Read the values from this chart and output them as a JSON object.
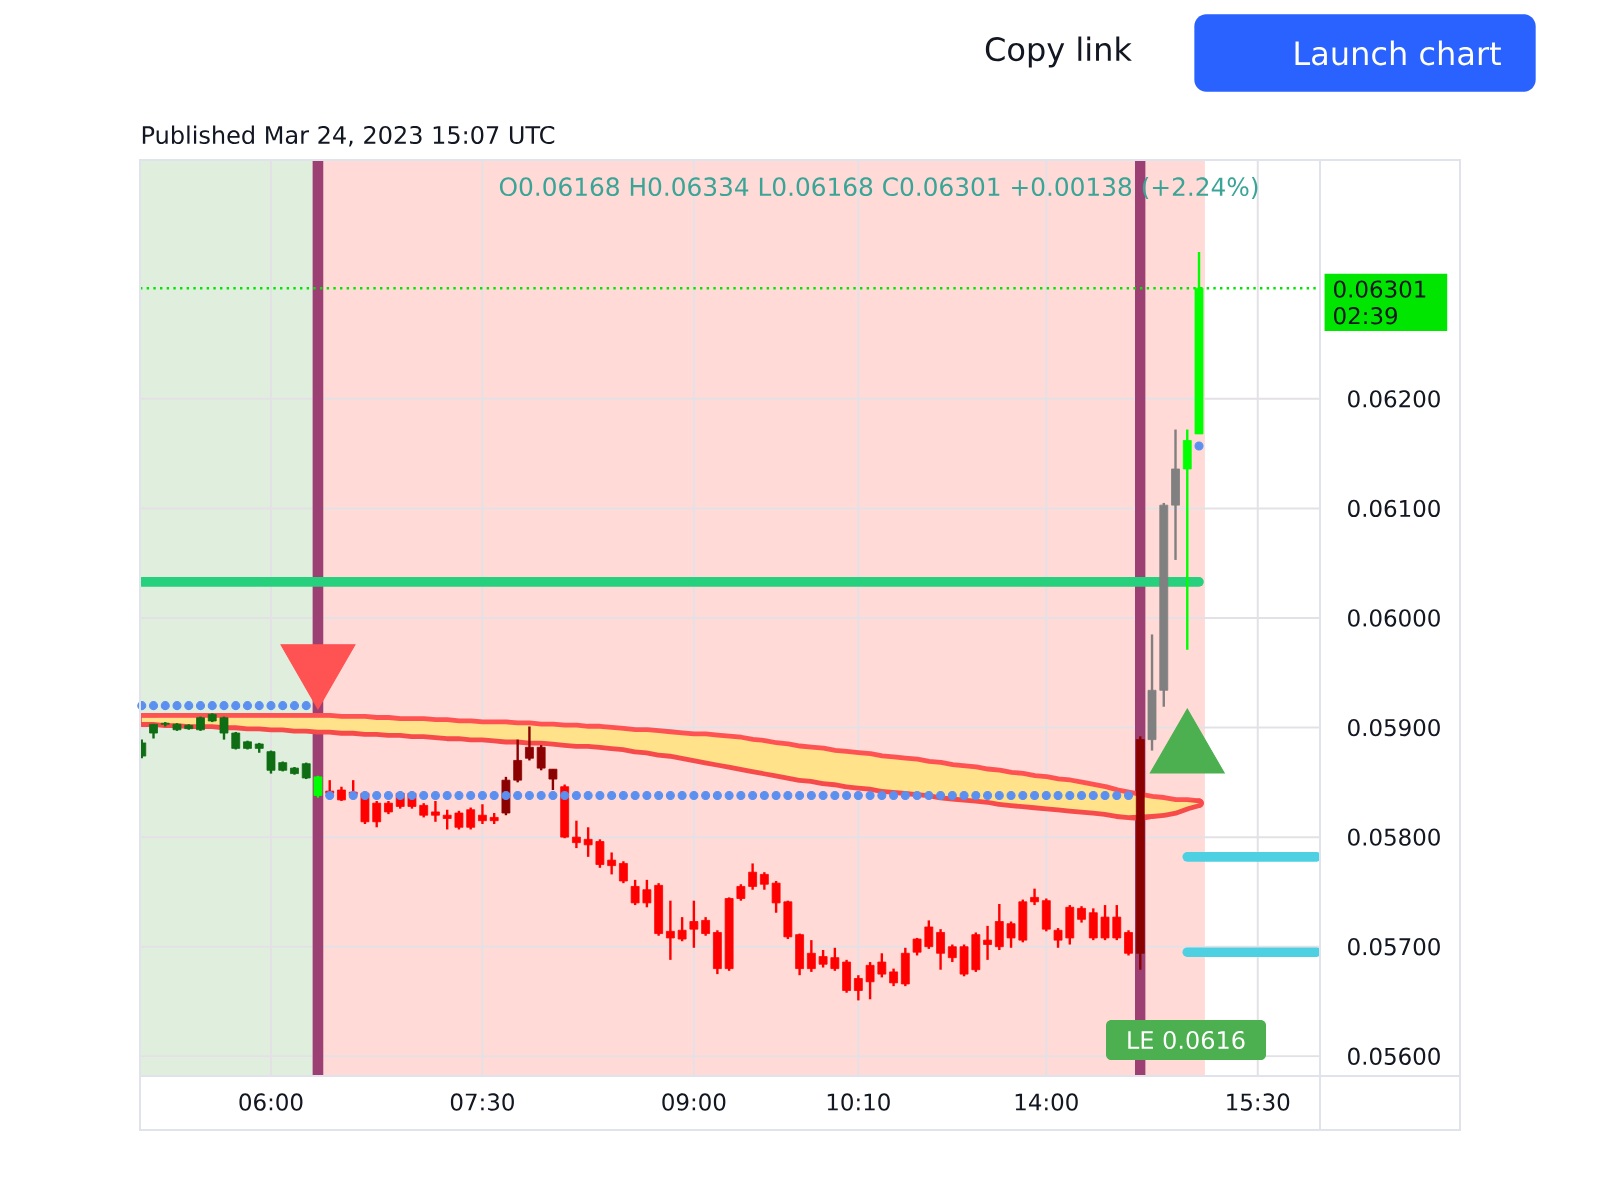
{
  "chart_data": {
    "type": "candlestick",
    "title": "O0.06168 H0.06334 L0.06168 C0.06301 +0.00138 (+2.24%)",
    "subtitle": "Published Mar 24, 2023 15:07 UTC",
    "categories": [
      null,
      null,
      null,
      null,
      null,
      null,
      null,
      null,
      null,
      null,
      null,
      "06:00",
      null,
      null,
      null,
      null,
      null,
      null,
      null,
      null,
      null,
      null,
      null,
      null,
      null,
      null,
      null,
      null,
      null,
      "07:30",
      null,
      null,
      null,
      null,
      null,
      null,
      null,
      null,
      null,
      null,
      null,
      null,
      null,
      null,
      null,
      null,
      null,
      "09:00",
      null,
      null,
      null,
      null,
      null,
      null,
      null,
      null,
      null,
      null,
      null,
      null,
      null,
      "10:10",
      null,
      null,
      null,
      null,
      null,
      null,
      null,
      null,
      null,
      null,
      null,
      null,
      null,
      null,
      null,
      "14:00",
      null,
      null,
      null,
      null,
      null,
      null,
      null,
      null,
      null,
      null,
      null,
      null,
      null,
      null,
      null,
      null,
      null,
      "15:30",
      null,
      null,
      null,
      null,
      null
    ],
    "ohlc": [
      [
        0.05874,
        0.05889,
        0.05872,
        0.05886
      ],
      [
        0.05895,
        0.05903,
        0.0589,
        0.05903
      ],
      [
        0.05903,
        0.05905,
        0.05901,
        0.05904
      ],
      [
        0.05898,
        0.05904,
        0.05897,
        0.05903
      ],
      [
        0.05899,
        0.05903,
        0.05898,
        0.05902
      ],
      [
        0.05898,
        0.0591,
        0.05897,
        0.05909
      ],
      [
        0.05906,
        0.05913,
        0.05905,
        0.05912
      ],
      [
        0.05895,
        0.0591,
        0.05889,
        0.05909
      ],
      [
        0.05881,
        0.05896,
        0.0588,
        0.05895
      ],
      [
        0.05881,
        0.05888,
        0.0588,
        0.05887
      ],
      [
        0.05881,
        0.05886,
        0.05877,
        0.05885
      ],
      [
        0.05861,
        0.05879,
        0.05858,
        0.05878
      ],
      [
        0.05861,
        0.05869,
        0.0586,
        0.05868
      ],
      [
        0.05858,
        0.05864,
        0.05857,
        0.05863
      ],
      [
        0.05854,
        0.05868,
        0.05853,
        0.05867
      ],
      [
        0.05838,
        0.05856,
        0.05836,
        0.05855
      ],
      [
        0.05842,
        0.05852,
        0.05837,
        0.0584
      ],
      [
        0.05843,
        0.05846,
        0.05833,
        0.05834
      ],
      [
        0.05841,
        0.05852,
        0.05836,
        0.05839
      ],
      [
        0.0584,
        0.05842,
        0.05812,
        0.05814
      ],
      [
        0.05831,
        0.05833,
        0.05809,
        0.05814
      ],
      [
        0.05831,
        0.05833,
        0.05821,
        0.05823
      ],
      [
        0.0584,
        0.05842,
        0.05826,
        0.05828
      ],
      [
        0.0584,
        0.05842,
        0.05826,
        0.05828
      ],
      [
        0.05829,
        0.05831,
        0.05818,
        0.0582
      ],
      [
        0.05823,
        0.05833,
        0.05814,
        0.0582
      ],
      [
        0.0582,
        0.05825,
        0.05807,
        0.05817
      ],
      [
        0.05822,
        0.05824,
        0.05807,
        0.05809
      ],
      [
        0.05825,
        0.05827,
        0.05807,
        0.05809
      ],
      [
        0.0582,
        0.0583,
        0.05812,
        0.05815
      ],
      [
        0.05818,
        0.05822,
        0.05812,
        0.05815
      ],
      [
        0.05852,
        0.05855,
        0.0582,
        0.05822
      ],
      [
        0.0587,
        0.05889,
        0.0585,
        0.05852
      ],
      [
        0.05882,
        0.05901,
        0.0587,
        0.05872
      ],
      [
        0.05882,
        0.05884,
        0.05861,
        0.05863
      ],
      [
        0.05862,
        0.05862,
        0.05843,
        0.05853
      ],
      [
        0.05846,
        0.05848,
        0.05799,
        0.058
      ],
      [
        0.058,
        0.05815,
        0.0579,
        0.05795
      ],
      [
        0.05798,
        0.05809,
        0.05782,
        0.05793
      ],
      [
        0.05796,
        0.05798,
        0.05772,
        0.05775
      ],
      [
        0.05779,
        0.05786,
        0.05766,
        0.05774
      ],
      [
        0.05776,
        0.05778,
        0.05758,
        0.0576
      ],
      [
        0.05755,
        0.05761,
        0.05738,
        0.0574
      ],
      [
        0.05752,
        0.05761,
        0.05736,
        0.0574
      ],
      [
        0.05756,
        0.05758,
        0.0571,
        0.05712
      ],
      [
        0.05714,
        0.05742,
        0.05688,
        0.05708
      ],
      [
        0.05715,
        0.05727,
        0.05705,
        0.05707
      ],
      [
        0.05723,
        0.05742,
        0.05699,
        0.05716
      ],
      [
        0.05724,
        0.05727,
        0.0571,
        0.05712
      ],
      [
        0.05713,
        0.05715,
        0.05675,
        0.0568
      ],
      [
        0.05744,
        0.05745,
        0.05678,
        0.0568
      ],
      [
        0.05755,
        0.05757,
        0.05742,
        0.05744
      ],
      [
        0.05768,
        0.05776,
        0.05752,
        0.05755
      ],
      [
        0.05766,
        0.05768,
        0.05752,
        0.05757
      ],
      [
        0.05758,
        0.0576,
        0.05731,
        0.0574
      ],
      [
        0.05741,
        0.05742,
        0.05707,
        0.05709
      ],
      [
        0.05711,
        0.05712,
        0.05674,
        0.0568
      ],
      [
        0.05694,
        0.05706,
        0.05677,
        0.0568
      ],
      [
        0.05691,
        0.05697,
        0.05681,
        0.05684
      ],
      [
        0.0569,
        0.05699,
        0.05678,
        0.0568
      ],
      [
        0.05686,
        0.05688,
        0.05658,
        0.0566
      ],
      [
        0.05671,
        0.05674,
        0.05651,
        0.0566
      ],
      [
        0.05683,
        0.05686,
        0.05652,
        0.05668
      ],
      [
        0.05686,
        0.05694,
        0.05672,
        0.05675
      ],
      [
        0.05677,
        0.0568,
        0.05664,
        0.05667
      ],
      [
        0.05694,
        0.05699,
        0.05664,
        0.05666
      ],
      [
        0.05707,
        0.05708,
        0.05692,
        0.05695
      ],
      [
        0.05718,
        0.05724,
        0.05698,
        0.057
      ],
      [
        0.05713,
        0.05716,
        0.05679,
        0.05694
      ],
      [
        0.057,
        0.05702,
        0.05686,
        0.0569
      ],
      [
        0.057,
        0.05702,
        0.05673,
        0.05675
      ],
      [
        0.05711,
        0.05713,
        0.05677,
        0.05679
      ],
      [
        0.05706,
        0.05719,
        0.05688,
        0.05702
      ],
      [
        0.05723,
        0.05739,
        0.05697,
        0.057
      ],
      [
        0.05721,
        0.05723,
        0.05699,
        0.05708
      ],
      [
        0.05741,
        0.05743,
        0.05704,
        0.05706
      ],
      [
        0.05745,
        0.05753,
        0.05738,
        0.05741
      ],
      [
        0.05742,
        0.05744,
        0.05714,
        0.05716
      ],
      [
        0.05715,
        0.05717,
        0.05699,
        0.05706
      ],
      [
        0.05736,
        0.05738,
        0.05702,
        0.05708
      ],
      [
        0.05735,
        0.05737,
        0.05722,
        0.05725
      ],
      [
        0.05731,
        0.05735,
        0.05706,
        0.05708
      ],
      [
        0.05727,
        0.05738,
        0.05706,
        0.05708
      ],
      [
        0.05727,
        0.05738,
        0.05706,
        0.05708
      ],
      [
        0.05713,
        0.05715,
        0.05692,
        0.05694
      ],
      [
        0.05889,
        0.05892,
        0.05679,
        0.05694
      ],
      [
        0.05889,
        0.05985,
        0.05879,
        0.05934
      ],
      [
        0.05934,
        0.06105,
        0.05919,
        0.06103
      ],
      [
        0.06103,
        0.06172,
        0.06053,
        0.06136
      ],
      [
        0.06136,
        0.06172,
        0.05971,
        0.06162
      ],
      [
        0.06168,
        0.06334,
        0.06168,
        0.06301
      ],
      null,
      null,
      null,
      null,
      null,
      null,
      null,
      null,
      null,
      null
    ],
    "colors": [
      "#0f6d14",
      "#0f6d14",
      "#0f6d14",
      "#0f6d14",
      "#0f6d14",
      "#0f6d14",
      "#0f6d14",
      "#0f6d14",
      "#0f6d14",
      "#0f6d14",
      "#0f6d14",
      "#0f6d14",
      "#0f6d14",
      "#0f6d14",
      "#0f6d14",
      "#00ff00",
      "#ff0000",
      "#ff0000",
      "#ff0000",
      "#ff0000",
      "#ff0000",
      "#ff0000",
      "#ff0000",
      "#ff0000",
      "#ff0000",
      "#ff0000",
      "#ff0000",
      "#ff0000",
      "#ff0000",
      "#ff0000",
      "#ff0000",
      "#8b0000",
      "#8b0000",
      "#8b0000",
      "#8b0000",
      "#8b0000",
      "#ff0000",
      "#ff0000",
      "#ff0000",
      "#ff0000",
      "#ff0000",
      "#ff0000",
      "#ff0000",
      "#ff0000",
      "#ff0000",
      "#ff0000",
      "#ff0000",
      "#ff0000",
      "#ff0000",
      "#ff0000",
      "#ff0000",
      "#ff0000",
      "#ff0000",
      "#ff0000",
      "#ff0000",
      "#ff0000",
      "#ff0000",
      "#ff0000",
      "#ff0000",
      "#ff0000",
      "#ff0000",
      "#ff0000",
      "#ff0000",
      "#ff0000",
      "#ff0000",
      "#ff0000",
      "#ff0000",
      "#ff0000",
      "#ff0000",
      "#ff0000",
      "#ff0000",
      "#ff0000",
      "#ff0000",
      "#ff0000",
      "#ff0000",
      "#ff0000",
      "#ff0000",
      "#ff0000",
      "#ff0000",
      "#ff0000",
      "#ff0000",
      "#ff0000",
      "#ff0000",
      "#ff0000",
      "#ff0000",
      "#8b0000",
      "#808080",
      "#808080",
      "#808080",
      "#00ff00",
      "#00ff00",
      null,
      null,
      null,
      null,
      null,
      null,
      null,
      null,
      null,
      null
    ],
    "series": [
      {
        "type": "line",
        "color": "#ff5252",
        "values": [
          0.05909,
          0.05909,
          0.05909,
          0.05909,
          0.05909,
          0.05909,
          0.05909,
          0.05909,
          0.05909,
          0.05909,
          0.05909,
          0.05909,
          0.05909,
          0.05909,
          0.05909,
          0.05909,
          0.05909,
          0.05908,
          0.05908,
          0.05908,
          0.05907,
          0.05907,
          0.05906,
          0.05906,
          0.05906,
          0.05905,
          0.05905,
          0.05904,
          0.05904,
          0.05903,
          0.05903,
          0.05903,
          0.05902,
          0.05902,
          0.05901,
          0.05901,
          0.059,
          0.059,
          0.05899,
          0.05899,
          0.05898,
          0.05897,
          0.05896,
          0.05896,
          0.05895,
          0.05894,
          0.05893,
          0.05892,
          0.05892,
          0.05891,
          0.0589,
          0.05889,
          0.05887,
          0.05886,
          0.05884,
          0.05883,
          0.05881,
          0.0588,
          0.05879,
          0.05877,
          0.05876,
          0.05875,
          0.05874,
          0.05872,
          0.05871,
          0.0587,
          0.05869,
          0.05867,
          0.05866,
          0.05864,
          0.05863,
          0.05862,
          0.0586,
          0.05859,
          0.05857,
          0.05856,
          0.05854,
          0.05853,
          0.05851,
          0.0585,
          0.05848,
          0.05846,
          0.05844,
          0.05841,
          0.05839,
          0.05837,
          0.05835,
          0.05834,
          0.05832,
          0.05832,
          0.05831,
          null,
          null,
          null,
          null,
          null,
          null,
          null,
          null,
          null,
          null
        ]
      },
      {
        "type": "line",
        "color": "#f74a4a",
        "values": [
          0.05905,
          0.05905,
          0.05904,
          0.05904,
          0.05903,
          0.05903,
          0.05903,
          0.05902,
          0.05902,
          0.05901,
          0.05901,
          0.059,
          0.059,
          0.05899,
          0.05899,
          0.05898,
          0.05898,
          0.05897,
          0.05897,
          0.05896,
          0.05896,
          0.05895,
          0.05895,
          0.05894,
          0.05894,
          0.05893,
          0.05892,
          0.05892,
          0.05891,
          0.05891,
          0.0589,
          0.05889,
          0.05889,
          0.05888,
          0.05888,
          0.05887,
          0.05886,
          0.05885,
          0.05885,
          0.05884,
          0.05883,
          0.05882,
          0.0588,
          0.05879,
          0.05877,
          0.05876,
          0.05874,
          0.05872,
          0.0587,
          0.05868,
          0.05866,
          0.05864,
          0.05862,
          0.0586,
          0.05858,
          0.05856,
          0.05854,
          0.05853,
          0.05851,
          0.0585,
          0.05848,
          0.05847,
          0.05846,
          0.05844,
          0.05843,
          0.05842,
          0.05841,
          0.0584,
          0.05838,
          0.05837,
          0.05836,
          0.05835,
          0.05834,
          0.05832,
          0.05831,
          0.0583,
          0.05829,
          0.05828,
          0.05827,
          0.05826,
          0.05825,
          0.05824,
          0.05823,
          0.05821,
          0.0582,
          0.05819,
          0.05821,
          0.05822,
          0.05824,
          0.05828,
          0.05831,
          null,
          null,
          null,
          null,
          null,
          null,
          null,
          null,
          null,
          null
        ]
      },
      {
        "type": "line",
        "color": "#ffe28a",
        "values": [
          null,
          null,
          null,
          null,
          null,
          null,
          null,
          null,
          null,
          null,
          null,
          null,
          null,
          null,
          null,
          null,
          null,
          null,
          null,
          null,
          null,
          null,
          null,
          null,
          null,
          null,
          null,
          null,
          null,
          null,
          null,
          null,
          null,
          null,
          null,
          null,
          null,
          null,
          null,
          null,
          null,
          null,
          null,
          null,
          null,
          null,
          null,
          null,
          null,
          null,
          null,
          null,
          null,
          null,
          null,
          null,
          null,
          null,
          null,
          null,
          null,
          null,
          null,
          null,
          null,
          null,
          null,
          null,
          null,
          null,
          null,
          null,
          null,
          null,
          null,
          null,
          null,
          null,
          null,
          null,
          null,
          null,
          null,
          null,
          null,
          null,
          null,
          null,
          null,
          null,
          null,
          null,
          null,
          null,
          null,
          null,
          null,
          null,
          null,
          null,
          null
        ],
        "upper": [
          0.05909,
          0.05909,
          0.05909,
          0.05909,
          0.05909,
          0.05909,
          0.05909,
          0.05909,
          0.05909,
          0.05909,
          0.05909,
          0.05909,
          0.05909,
          0.05909,
          0.05909,
          0.05909,
          0.05909,
          0.05908,
          0.05908,
          0.05908,
          0.05907,
          0.05907,
          0.05906,
          0.05906,
          0.05906,
          0.05905,
          0.05905,
          0.05904,
          0.05904,
          0.05903,
          0.05903,
          0.05903,
          0.05902,
          0.05902,
          0.05901,
          0.05901,
          0.059,
          0.059,
          0.05899,
          0.05899,
          0.05898,
          0.05897,
          0.05896,
          0.05896,
          0.05895,
          0.05894,
          0.05893,
          0.05892,
          0.05892,
          0.05891,
          0.0589,
          0.05889,
          0.05887,
          0.05886,
          0.05884,
          0.05883,
          0.05881,
          0.0588,
          0.05879,
          0.05877,
          0.05876,
          0.05875,
          0.05874,
          0.05872,
          0.05871,
          0.0587,
          0.05869,
          0.05867,
          0.05866,
          0.05864,
          0.05863,
          0.05862,
          0.0586,
          0.05859,
          0.05857,
          0.05856,
          0.05854,
          0.05853,
          0.05851,
          0.0585,
          0.05848,
          0.05846,
          0.05844,
          0.05841,
          0.05839,
          null,
          0.05835,
          0.05834,
          0.05832,
          0.05832,
          0.05831,
          null,
          null,
          null,
          null,
          null,
          null,
          null,
          null,
          null,
          null
        ],
        "lower": [
          0.05905,
          0.05905,
          0.05904,
          0.05904,
          0.05903,
          0.05903,
          0.05903,
          0.05902,
          0.05902,
          0.05901,
          0.05901,
          0.059,
          0.059,
          0.05899,
          0.05899,
          0.05898,
          0.05898,
          0.05897,
          0.05897,
          0.05896,
          0.05896,
          0.05895,
          0.05895,
          0.05894,
          0.05894,
          0.05893,
          0.05892,
          0.05892,
          0.05891,
          0.05891,
          0.0589,
          0.05889,
          0.05889,
          0.05888,
          0.05888,
          0.05887,
          0.05886,
          0.05885,
          0.05885,
          0.05884,
          0.05883,
          0.05882,
          0.0588,
          0.05879,
          0.05877,
          0.05876,
          0.05874,
          0.05872,
          0.0587,
          0.05868,
          0.05866,
          0.05864,
          0.05862,
          0.0586,
          0.05858,
          0.05856,
          0.05854,
          0.05853,
          0.05851,
          0.0585,
          0.05848,
          0.05847,
          0.05846,
          0.05844,
          0.05843,
          0.05842,
          0.05841,
          0.0584,
          0.05838,
          0.05837,
          0.05836,
          0.05835,
          0.05834,
          0.05832,
          0.05831,
          0.0583,
          0.05829,
          0.05828,
          0.05827,
          0.05826,
          0.05825,
          0.05824,
          0.05823,
          0.05821,
          0.0582,
          null,
          0.05821,
          0.05822,
          0.05824,
          0.05828,
          0.05831,
          null,
          null,
          null,
          null,
          null,
          null,
          null,
          null,
          null,
          null
        ]
      },
      {
        "type": "line",
        "color": "#26d07c",
        "values": [
          0.06033,
          0.06033,
          0.06033,
          0.06033,
          0.06033,
          0.06033,
          0.06033,
          0.06033,
          0.06033,
          0.06033,
          0.06033,
          0.06033,
          0.06033,
          0.06033,
          0.06033,
          0.06033,
          0.06033,
          0.06033,
          0.06033,
          0.06033,
          0.06033,
          0.06033,
          0.06033,
          0.06033,
          0.06033,
          0.06033,
          0.06033,
          0.06033,
          0.06033,
          0.06033,
          0.06033,
          0.06033,
          0.06033,
          0.06033,
          0.06033,
          0.06033,
          0.06033,
          0.06033,
          0.06033,
          0.06033,
          0.06033,
          0.06033,
          0.06033,
          0.06033,
          0.06033,
          0.06033,
          0.06033,
          0.06033,
          0.06033,
          0.06033,
          0.06033,
          0.06033,
          0.06033,
          0.06033,
          0.06033,
          0.06033,
          0.06033,
          0.06033,
          0.06033,
          0.06033,
          0.06033,
          0.06033,
          0.06033,
          0.06033,
          0.06033,
          0.06033,
          0.06033,
          0.06033,
          0.06033,
          0.06033,
          0.06033,
          0.06033,
          0.06033,
          0.06033,
          0.06033,
          0.06033,
          0.06033,
          0.06033,
          0.06033,
          0.06033,
          0.06033,
          0.06033,
          0.06033,
          0.06033,
          0.06033,
          0.06033,
          0.06033,
          0.06033,
          0.06033,
          0.06033,
          0.06033,
          null,
          null,
          null,
          null,
          null,
          null,
          null,
          null,
          null,
          null
        ]
      },
      {
        "type": "line",
        "color": "#4dd0e1",
        "values": [
          null,
          null,
          null,
          null,
          null,
          null,
          null,
          null,
          null,
          null,
          null,
          null,
          null,
          null,
          null,
          null,
          null,
          null,
          null,
          null,
          null,
          null,
          null,
          null,
          null,
          null,
          null,
          null,
          null,
          null,
          null,
          null,
          null,
          null,
          null,
          null,
          null,
          null,
          null,
          null,
          null,
          null,
          null,
          null,
          null,
          null,
          null,
          null,
          null,
          null,
          null,
          null,
          null,
          null,
          null,
          null,
          null,
          null,
          null,
          null,
          null,
          null,
          null,
          null,
          null,
          null,
          null,
          null,
          null,
          null,
          null,
          null,
          null,
          null,
          null,
          null,
          null,
          null,
          null,
          null,
          null,
          null,
          null,
          null,
          null,
          null,
          null,
          null,
          null,
          0.05782,
          0.05782,
          0.05782,
          0.05782,
          0.05782,
          0.05782,
          0.05782,
          0.05782,
          0.05782,
          0.05782,
          0.05782,
          0.05782
        ]
      },
      {
        "type": "line",
        "color": "#4dd0e1",
        "values": [
          null,
          null,
          null,
          null,
          null,
          null,
          null,
          null,
          null,
          null,
          null,
          null,
          null,
          null,
          null,
          null,
          null,
          null,
          null,
          null,
          null,
          null,
          null,
          null,
          null,
          null,
          null,
          null,
          null,
          null,
          null,
          null,
          null,
          null,
          null,
          null,
          null,
          null,
          null,
          null,
          null,
          null,
          null,
          null,
          null,
          null,
          null,
          null,
          null,
          null,
          null,
          null,
          null,
          null,
          null,
          null,
          null,
          null,
          null,
          null,
          null,
          null,
          null,
          null,
          null,
          null,
          null,
          null,
          null,
          null,
          null,
          null,
          null,
          null,
          null,
          null,
          null,
          null,
          null,
          null,
          null,
          null,
          null,
          null,
          null,
          null,
          null,
          null,
          null,
          0.05695,
          0.05695,
          0.05695,
          0.05695,
          0.05695,
          0.05695,
          0.05695,
          0.05695,
          0.05695,
          0.05695,
          0.05695,
          0.05695
        ]
      },
      {
        "type": "scatter",
        "marker": "circle",
        "color": "#5b8ff0",
        "values": [
          0.0592,
          0.0592,
          0.0592,
          0.0592,
          0.0592,
          0.0592,
          0.0592,
          0.0592,
          0.0592,
          0.0592,
          0.0592,
          0.0592,
          0.0592,
          0.0592,
          0.0592,
          null,
          0.05838,
          null,
          0.05838,
          0.05838,
          0.05838,
          0.05838,
          0.05838,
          0.05838,
          0.05838,
          0.05838,
          0.05838,
          0.05838,
          0.05838,
          0.05838,
          0.05838,
          0.05838,
          0.05838,
          0.05838,
          0.05838,
          0.05838,
          0.05838,
          0.05838,
          0.05838,
          0.05838,
          0.05838,
          0.05838,
          0.05838,
          0.05838,
          0.05838,
          0.05838,
          0.05838,
          0.05838,
          0.05838,
          0.05838,
          0.05838,
          0.05838,
          0.05838,
          0.05838,
          0.05838,
          0.05838,
          0.05838,
          0.05838,
          0.05838,
          0.05838,
          0.05838,
          0.05838,
          0.05838,
          0.05838,
          0.05838,
          0.05838,
          0.05838,
          0.05838,
          0.05838,
          0.05838,
          0.05838,
          0.05838,
          0.05838,
          0.05838,
          0.05838,
          0.05838,
          0.05838,
          0.05838,
          0.05838,
          0.05838,
          0.05838,
          0.05838,
          0.05838,
          0.05838,
          0.05838,
          null,
          null,
          null,
          null,
          null,
          0.06157,
          null,
          null,
          null,
          null,
          null,
          null,
          null,
          null,
          null,
          null
        ]
      },
      {
        "type": "scatter",
        "marker": "triangle-down",
        "color": "#ff5252",
        "values": [
          null,
          null,
          null,
          null,
          null,
          null,
          null,
          null,
          null,
          null,
          null,
          null,
          null,
          null,
          null,
          0.05956,
          null,
          null,
          null,
          null,
          null,
          null,
          null,
          null,
          null,
          null,
          null,
          null,
          null,
          null,
          null,
          null,
          null,
          null,
          null,
          null,
          null,
          null,
          null,
          null,
          null,
          null,
          null,
          null,
          null,
          null,
          null,
          null,
          null,
          null,
          null,
          null,
          null,
          null,
          null,
          null,
          null,
          null,
          null,
          null,
          null,
          null,
          null,
          null,
          null,
          null,
          null,
          null,
          null,
          null,
          null,
          null,
          null,
          null,
          null,
          null,
          null,
          null,
          null,
          null,
          null,
          null,
          null,
          null,
          null,
          null,
          null,
          null,
          null,
          null,
          null,
          null,
          null,
          null,
          null,
          null,
          null,
          null,
          null,
          null,
          null
        ]
      },
      {
        "type": "scatter",
        "marker": "triangle",
        "color": "#4caf50",
        "values": [
          null,
          null,
          null,
          null,
          null,
          null,
          null,
          null,
          null,
          null,
          null,
          null,
          null,
          null,
          null,
          null,
          null,
          null,
          null,
          null,
          null,
          null,
          null,
          null,
          null,
          null,
          null,
          null,
          null,
          null,
          null,
          null,
          null,
          null,
          null,
          null,
          null,
          null,
          null,
          null,
          null,
          null,
          null,
          null,
          null,
          null,
          null,
          null,
          null,
          null,
          null,
          null,
          null,
          null,
          null,
          null,
          null,
          null,
          null,
          null,
          null,
          null,
          null,
          null,
          null,
          null,
          null,
          null,
          null,
          null,
          null,
          null,
          null,
          null,
          null,
          null,
          null,
          null,
          null,
          null,
          null,
          null,
          null,
          null,
          null,
          null,
          null,
          null,
          null,
          0.05878,
          null,
          null,
          null,
          null,
          null,
          null,
          null,
          null,
          null,
          null,
          null
        ]
      }
    ],
    "ylim": [
      0.05582,
      0.06418
    ],
    "yticks": [
      {
        "value": 0.056,
        "label": "0.05600"
      },
      {
        "value": 0.057,
        "label": "0.05700"
      },
      {
        "value": 0.058,
        "label": "0.05800"
      },
      {
        "value": 0.059,
        "label": "0.05900"
      },
      {
        "value": 0.06,
        "label": "0.06000"
      },
      {
        "value": 0.061,
        "label": "0.06100"
      },
      {
        "value": 0.062,
        "label": "0.06200"
      }
    ],
    "grid": true,
    "ref_lines": [
      {
        "axis": "y",
        "value": 0.06301,
        "label": "0.06301 02:39",
        "color": "#00e600",
        "line_style": "dotted"
      }
    ],
    "annotations": [
      "Copy link",
      "Launch chart",
      "LE 0.0616"
    ]
  }
}
